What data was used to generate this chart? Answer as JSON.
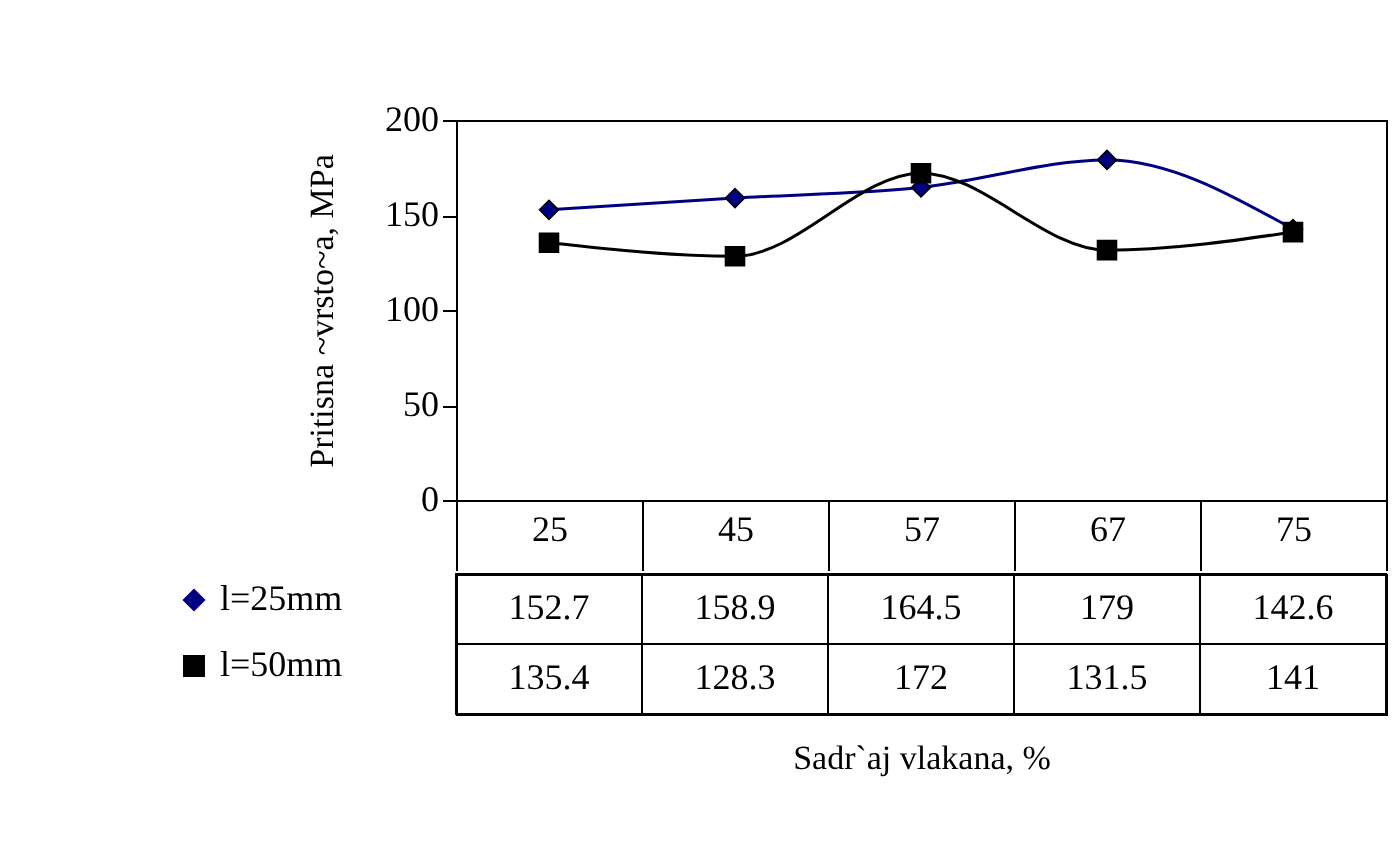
{
  "chart_data": {
    "type": "line",
    "annotations": [
      "Sadr`aj vlakana, %"
    ],
    "ylabel": "Pritisna ~vrsto~a, MPa",
    "categories": [
      "25",
      "45",
      "57",
      "67",
      "75"
    ],
    "series": [
      {
        "name": "l=25mm",
        "color": "#000080",
        "marker": "diamond",
        "values": [
          152.7,
          158.9,
          164.5,
          179,
          142.6
        ]
      },
      {
        "name": "l=50mm",
        "color": "#000000",
        "marker": "square",
        "values": [
          135.4,
          128.3,
          172,
          131.5,
          141
        ]
      }
    ],
    "ylim": [
      0,
      200
    ],
    "yticks": [
      0,
      50,
      100,
      150,
      200
    ],
    "grid": false,
    "legend": "bottom left",
    "data_labels": true
  }
}
